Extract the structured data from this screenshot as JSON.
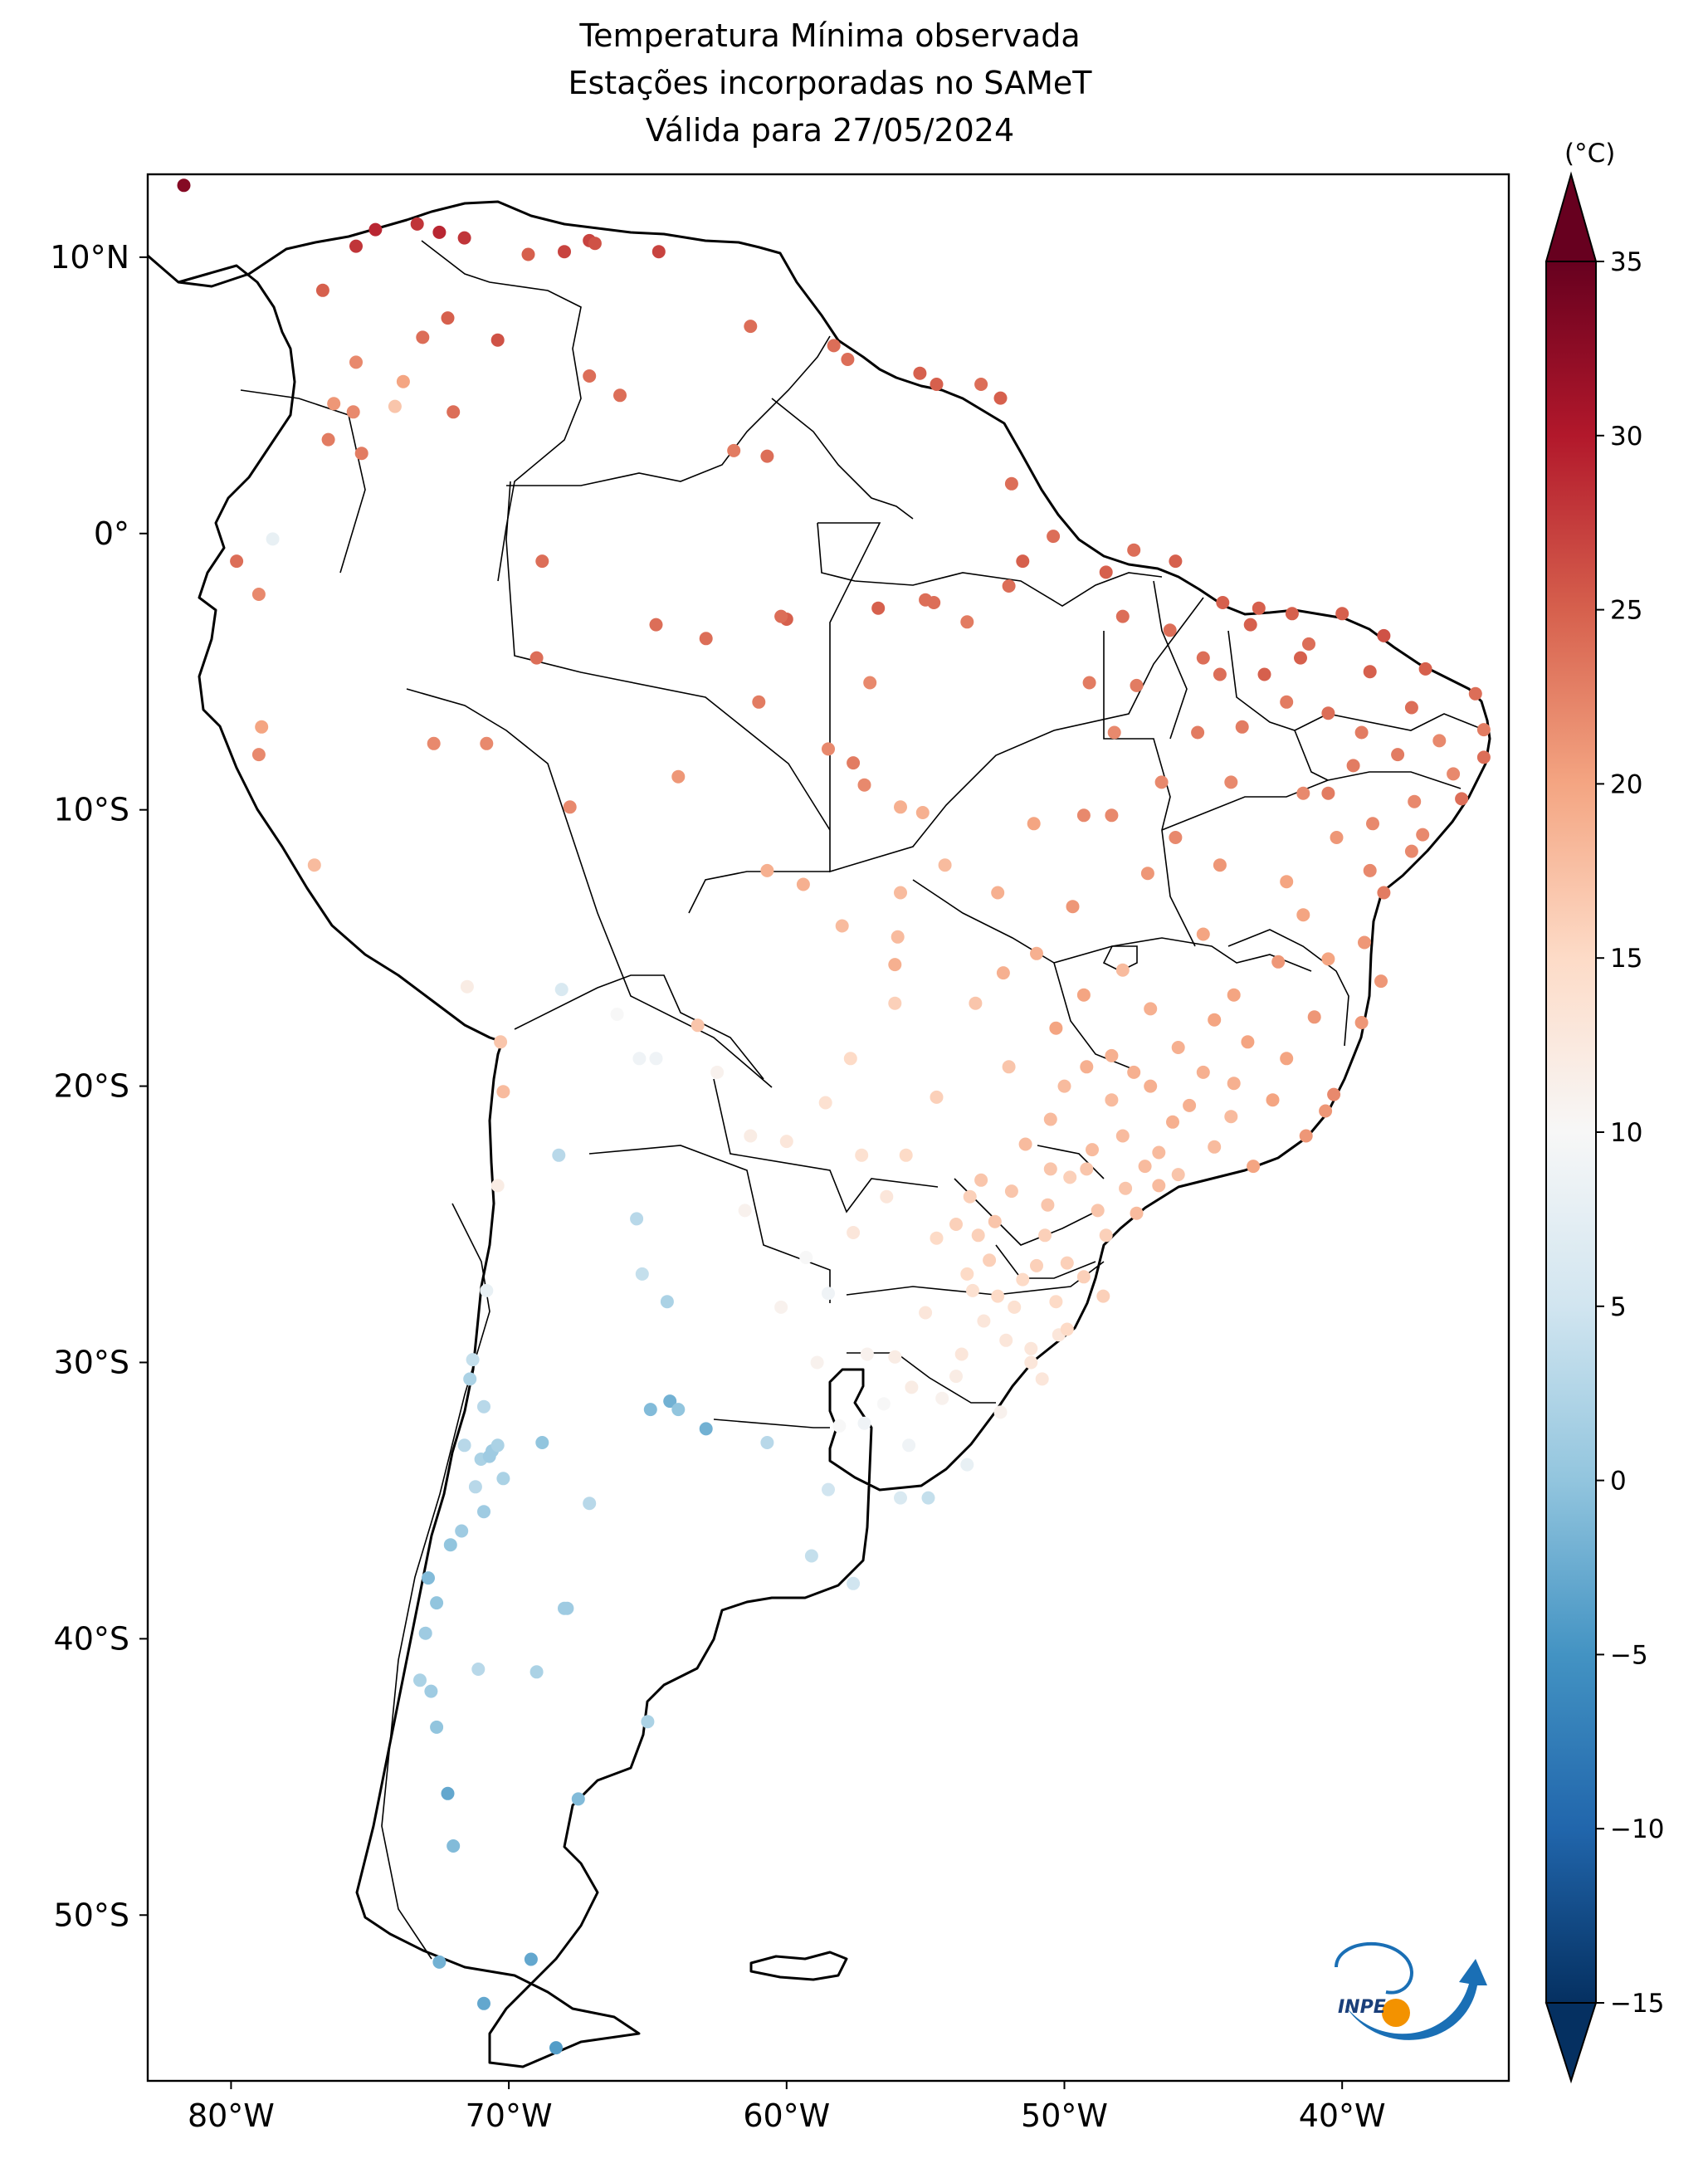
{
  "title": {
    "line1": "Temperatura Mínima observada",
    "line2": "Estações incorporadas no SAMeT",
    "line3": "Válida para 27/05/2024"
  },
  "axes": {
    "lon_range": [
      -83,
      -34
    ],
    "lat_range": [
      -56,
      13
    ],
    "lon_ticks": [
      {
        "value": -80,
        "label": "80°W"
      },
      {
        "value": -70,
        "label": "70°W"
      },
      {
        "value": -60,
        "label": "60°W"
      },
      {
        "value": -50,
        "label": "50°W"
      },
      {
        "value": -40,
        "label": "40°W"
      }
    ],
    "lat_ticks": [
      {
        "value": 10,
        "label": "10°N"
      },
      {
        "value": 0,
        "label": "0°"
      },
      {
        "value": -10,
        "label": "10°S"
      },
      {
        "value": -20,
        "label": "20°S"
      },
      {
        "value": -30,
        "label": "30°S"
      },
      {
        "value": -40,
        "label": "40°S"
      },
      {
        "value": -50,
        "label": "50°S"
      }
    ]
  },
  "colorbar": {
    "unit": "(°C)",
    "colormap": "RdBu_r",
    "range": [
      -15,
      35
    ],
    "ticks": [
      {
        "value": 35,
        "label": "35"
      },
      {
        "value": 30,
        "label": "30"
      },
      {
        "value": 25,
        "label": "25"
      },
      {
        "value": 20,
        "label": "20"
      },
      {
        "value": 15,
        "label": "15"
      },
      {
        "value": 10,
        "label": "10"
      },
      {
        "value": 5,
        "label": "5"
      },
      {
        "value": 0,
        "label": "0"
      },
      {
        "value": -5,
        "label": "−5"
      },
      {
        "value": -10,
        "label": "−10"
      },
      {
        "value": -15,
        "label": "−15"
      }
    ]
  },
  "logo": {
    "text": "INPE",
    "colors": [
      "#1a6fb5",
      "#f39200"
    ]
  },
  "chart_data": {
    "type": "scatter",
    "x_name": "longitude",
    "y_name": "latitude",
    "value_name": "temperatura mínima (°C)",
    "stations": [
      [
        -81.7,
        12.6,
        33
      ],
      [
        -75.5,
        10.4,
        28
      ],
      [
        -74.8,
        11.0,
        29
      ],
      [
        -73.3,
        11.2,
        28
      ],
      [
        -72.5,
        10.9,
        29
      ],
      [
        -67.1,
        10.6,
        27
      ],
      [
        -76.7,
        8.8,
        25
      ],
      [
        -73.1,
        7.1,
        24
      ],
      [
        -72.2,
        7.8,
        25
      ],
      [
        -70.4,
        7.0,
        26
      ],
      [
        -75.5,
        6.2,
        22
      ],
      [
        -76.3,
        4.7,
        21
      ],
      [
        -75.6,
        4.4,
        22
      ],
      [
        -74.1,
        4.6,
        17
      ],
      [
        -76.5,
        3.4,
        23
      ],
      [
        -75.3,
        2.9,
        23
      ],
      [
        -79.8,
        -1.0,
        24
      ],
      [
        -78.5,
        -0.2,
        8
      ],
      [
        -79.0,
        -2.2,
        22
      ],
      [
        -78.9,
        -7.0,
        20
      ],
      [
        -79.0,
        -8.0,
        22
      ],
      [
        -77.0,
        -12.0,
        18
      ],
      [
        -71.5,
        -16.4,
        12
      ],
      [
        -70.3,
        -18.4,
        17
      ],
      [
        -70.2,
        -20.2,
        18
      ],
      [
        -68.1,
        -16.5,
        6
      ],
      [
        -66.1,
        -17.4,
        10
      ],
      [
        -63.2,
        -17.8,
        17
      ],
      [
        -65.3,
        -19.0,
        9
      ],
      [
        -68.2,
        -22.5,
        3
      ],
      [
        -70.4,
        -23.6,
        12
      ],
      [
        -65.4,
        -24.8,
        3
      ],
      [
        -65.2,
        -26.8,
        4
      ],
      [
        -64.3,
        -27.8,
        2
      ],
      [
        -70.8,
        -27.4,
        8
      ],
      [
        -71.3,
        -29.9,
        4
      ],
      [
        -71.4,
        -30.6,
        2
      ],
      [
        -70.9,
        -31.6,
        3
      ],
      [
        -70.6,
        -33.2,
        1
      ],
      [
        -71.0,
        -33.5,
        2
      ],
      [
        -70.7,
        -33.4,
        1
      ],
      [
        -71.6,
        -33.0,
        3
      ],
      [
        -70.4,
        -33.0,
        2
      ],
      [
        -70.2,
        -34.2,
        2
      ],
      [
        -71.2,
        -34.5,
        3
      ],
      [
        -70.9,
        -35.4,
        1
      ],
      [
        -71.7,
        -36.1,
        1
      ],
      [
        -72.1,
        -36.6,
        0
      ],
      [
        -72.9,
        -37.8,
        -1
      ],
      [
        -72.6,
        -38.7,
        0
      ],
      [
        -73.0,
        -39.8,
        1
      ],
      [
        -73.2,
        -41.5,
        2
      ],
      [
        -72.8,
        -41.9,
        1
      ],
      [
        -72.6,
        -43.2,
        0
      ],
      [
        -72.2,
        -45.6,
        -3
      ],
      [
        -72.0,
        -47.5,
        -1
      ],
      [
        -72.5,
        -51.7,
        -2
      ],
      [
        -70.9,
        -53.2,
        -3
      ],
      [
        -68.3,
        -54.8,
        -4
      ],
      [
        -64.2,
        -31.4,
        -2
      ],
      [
        -63.9,
        -31.7,
        0
      ],
      [
        -62.9,
        -32.4,
        -2
      ],
      [
        -68.8,
        -32.9,
        0
      ],
      [
        -60.7,
        -32.9,
        3
      ],
      [
        -58.5,
        -34.6,
        5
      ],
      [
        -59.1,
        -37.0,
        4
      ],
      [
        -57.6,
        -38.0,
        5
      ],
      [
        -68.0,
        -38.9,
        1
      ],
      [
        -67.9,
        -38.9,
        1
      ],
      [
        -71.1,
        -41.1,
        3
      ],
      [
        -69.0,
        -41.2,
        2
      ],
      [
        -65.0,
        -43.0,
        2
      ],
      [
        -67.5,
        -45.8,
        -1
      ],
      [
        -69.2,
        -51.6,
        -3
      ],
      [
        -64.9,
        -31.7,
        -1
      ],
      [
        -67.1,
        -35.1,
        3
      ],
      [
        -60.0,
        -3.1,
        25
      ],
      [
        -60.2,
        -3.0,
        24
      ],
      [
        -56.7,
        -2.7,
        25
      ],
      [
        -55.0,
        -2.4,
        24
      ],
      [
        -54.7,
        -2.5,
        24
      ],
      [
        -52.0,
        -1.9,
        24
      ],
      [
        -48.5,
        -1.4,
        25
      ],
      [
        -47.5,
        -0.6,
        24
      ],
      [
        -46.0,
        -1.0,
        25
      ],
      [
        -44.3,
        -2.5,
        25
      ],
      [
        -43.0,
        -2.7,
        25
      ],
      [
        -41.8,
        -2.9,
        25
      ],
      [
        -40.0,
        -2.9,
        25
      ],
      [
        -38.5,
        -3.7,
        26
      ],
      [
        -37.0,
        -4.9,
        25
      ],
      [
        -35.2,
        -5.8,
        24
      ],
      [
        -34.9,
        -7.1,
        23
      ],
      [
        -34.9,
        -8.1,
        24
      ],
      [
        -35.7,
        -9.6,
        24
      ],
      [
        -37.1,
        -10.9,
        22
      ],
      [
        -38.5,
        -13.0,
        23
      ],
      [
        -39.2,
        -14.8,
        21
      ],
      [
        -39.3,
        -17.7,
        21
      ],
      [
        -40.3,
        -20.3,
        22
      ],
      [
        -43.2,
        -22.9,
        20
      ],
      [
        -46.6,
        -23.6,
        18
      ],
      [
        -48.5,
        -25.4,
        16
      ],
      [
        -48.6,
        -27.6,
        16
      ],
      [
        -51.2,
        -30.0,
        13
      ],
      [
        -52.3,
        -31.8,
        11
      ],
      [
        -53.5,
        -33.7,
        8
      ],
      [
        -55.9,
        -34.9,
        6
      ],
      [
        -54.9,
        -34.9,
        4
      ],
      [
        -60.7,
        -12.2,
        19
      ],
      [
        -63.9,
        -8.8,
        21
      ],
      [
        -67.8,
        -9.9,
        22
      ],
      [
        -70.8,
        -7.6,
        22
      ],
      [
        -72.7,
        -7.6,
        22
      ],
      [
        -62.9,
        -3.8,
        24
      ],
      [
        -64.7,
        -3.3,
        24
      ],
      [
        -68.8,
        -1.0,
        24
      ],
      [
        -69.0,
        -4.5,
        24
      ],
      [
        -61.0,
        -6.1,
        23
      ],
      [
        -58.5,
        -7.8,
        22
      ],
      [
        -57.6,
        -8.3,
        23
      ],
      [
        -55.9,
        -9.9,
        19
      ],
      [
        -55.1,
        -10.1,
        19
      ],
      [
        -57.2,
        -9.1,
        22
      ],
      [
        -54.3,
        -12.0,
        18
      ],
      [
        -56.1,
        -15.6,
        19
      ],
      [
        -55.9,
        -13.0,
        18
      ],
      [
        -58.0,
        -14.2,
        18
      ],
      [
        -52.4,
        -13.0,
        19
      ],
      [
        -51.1,
        -10.5,
        20
      ],
      [
        -49.3,
        -10.2,
        22
      ],
      [
        -48.3,
        -10.2,
        22
      ],
      [
        -48.2,
        -7.2,
        22
      ],
      [
        -47.4,
        -5.5,
        23
      ],
      [
        -49.1,
        -5.4,
        23
      ],
      [
        -44.4,
        -5.1,
        24
      ],
      [
        -42.8,
        -5.1,
        25
      ],
      [
        -42.0,
        -6.1,
        23
      ],
      [
        -39.3,
        -7.2,
        23
      ],
      [
        -41.4,
        -9.4,
        22
      ],
      [
        -40.5,
        -9.4,
        23
      ],
      [
        -44.4,
        -12.0,
        21
      ],
      [
        -45.0,
        -14.5,
        20
      ],
      [
        -43.9,
        -16.7,
        20
      ],
      [
        -46.9,
        -17.2,
        19
      ],
      [
        -49.3,
        -16.7,
        20
      ],
      [
        -47.9,
        -15.8,
        18
      ],
      [
        -52.2,
        -15.9,
        19
      ],
      [
        -48.3,
        -18.9,
        19
      ],
      [
        -45.0,
        -19.5,
        19
      ],
      [
        -43.9,
        -19.9,
        19
      ],
      [
        -42.0,
        -19.0,
        20
      ],
      [
        -41.3,
        -21.8,
        21
      ],
      [
        -47.1,
        -22.9,
        18
      ],
      [
        -49.0,
        -22.3,
        18
      ],
      [
        -51.4,
        -22.1,
        18
      ],
      [
        -53.0,
        -23.4,
        17
      ],
      [
        -54.6,
        -20.4,
        16
      ],
      [
        -55.7,
        -22.5,
        15
      ],
      [
        -57.7,
        -19.0,
        15
      ],
      [
        -56.1,
        -17.0,
        16
      ],
      [
        -50.5,
        -21.2,
        18
      ],
      [
        -52.5,
        -24.9,
        17
      ],
      [
        -53.5,
        -26.8,
        15
      ],
      [
        -51.0,
        -26.5,
        16
      ],
      [
        -50.3,
        -27.8,
        15
      ],
      [
        -49.9,
        -26.4,
        16
      ],
      [
        -53.7,
        -29.7,
        13
      ],
      [
        -56.1,
        -29.8,
        12
      ],
      [
        -54.4,
        -31.3,
        11
      ],
      [
        -52.1,
        -29.2,
        13
      ],
      [
        -50.2,
        -29.0,
        13
      ],
      [
        -55.5,
        -30.9,
        12
      ],
      [
        -57.1,
        -29.7,
        11
      ],
      [
        -58.5,
        -27.5,
        9
      ],
      [
        -59.3,
        -26.2,
        10
      ],
      [
        -57.6,
        -25.3,
        13
      ],
      [
        -56.4,
        -24.0,
        13
      ],
      [
        -57.3,
        -22.5,
        14
      ],
      [
        -60.0,
        -22.0,
        13
      ],
      [
        -61.3,
        -21.8,
        12
      ],
      [
        -62.5,
        -19.5,
        11
      ],
      [
        -58.6,
        -20.6,
        14
      ],
      [
        -64.7,
        -19.0,
        9
      ],
      [
        -59.4,
        -12.7,
        19
      ],
      [
        -56.0,
        -14.6,
        18
      ],
      [
        -53.2,
        -17.0,
        17
      ],
      [
        -52.0,
        -19.3,
        17
      ],
      [
        -47.9,
        -21.8,
        18
      ],
      [
        -46.1,
        -21.3,
        19
      ],
      [
        -44.0,
        -21.1,
        18
      ],
      [
        -45.9,
        -23.2,
        17
      ],
      [
        -47.4,
        -24.6,
        18
      ],
      [
        -48.8,
        -24.5,
        17
      ],
      [
        -49.8,
        -23.3,
        16
      ],
      [
        -50.6,
        -24.3,
        17
      ],
      [
        -52.7,
        -26.3,
        16
      ],
      [
        -53.9,
        -25.0,
        16
      ],
      [
        -54.6,
        -25.5,
        15
      ],
      [
        -51.8,
        -28.0,
        14
      ],
      [
        -52.9,
        -28.5,
        13
      ],
      [
        -53.3,
        -27.4,
        14
      ],
      [
        -51.5,
        -27.0,
        15
      ],
      [
        -49.9,
        -28.8,
        15
      ],
      [
        -44.0,
        -9.0,
        22
      ],
      [
        -46.5,
        -9.0,
        22
      ],
      [
        -43.6,
        -7.0,
        23
      ],
      [
        -41.2,
        -4.0,
        24
      ],
      [
        -39.0,
        -5.0,
        25
      ],
      [
        -37.5,
        -6.3,
        24
      ],
      [
        -36.5,
        -7.5,
        22
      ],
      [
        -36.0,
        -8.7,
        22
      ],
      [
        -37.4,
        -9.7,
        22
      ],
      [
        -38.9,
        -10.5,
        22
      ],
      [
        -40.2,
        -11.0,
        21
      ],
      [
        -42.0,
        -12.6,
        20
      ],
      [
        -41.4,
        -13.8,
        20
      ],
      [
        -40.5,
        -15.4,
        20
      ],
      [
        -42.3,
        -15.5,
        21
      ],
      [
        -41.0,
        -17.5,
        21
      ],
      [
        -44.6,
        -17.6,
        20
      ],
      [
        -43.4,
        -18.4,
        20
      ],
      [
        -45.9,
        -18.6,
        19
      ],
      [
        -47.5,
        -19.5,
        19
      ],
      [
        -49.2,
        -19.3,
        19
      ],
      [
        -50.3,
        -17.9,
        20
      ],
      [
        -51.0,
        -15.2,
        19
      ],
      [
        -49.7,
        -13.5,
        21
      ],
      [
        -47.0,
        -12.3,
        21
      ],
      [
        -46.0,
        -11.0,
        22
      ],
      [
        -45.2,
        -7.2,
        23
      ],
      [
        -47.9,
        -3.0,
        24
      ],
      [
        -46.2,
        -3.5,
        24
      ],
      [
        -45.0,
        -4.5,
        24
      ],
      [
        -43.3,
        -3.3,
        25
      ],
      [
        -41.5,
        -4.5,
        25
      ],
      [
        -40.5,
        -6.5,
        24
      ],
      [
        -39.6,
        -8.4,
        23
      ],
      [
        -38.0,
        -8.0,
        23
      ],
      [
        -37.5,
        -11.5,
        22
      ],
      [
        -39.0,
        -12.2,
        22
      ],
      [
        -38.6,
        -16.2,
        21
      ],
      [
        -40.6,
        -20.9,
        21
      ],
      [
        -42.5,
        -20.5,
        20
      ],
      [
        -44.6,
        -22.2,
        18
      ],
      [
        -45.5,
        -20.7,
        19
      ],
      [
        -46.9,
        -20.0,
        19
      ],
      [
        -48.3,
        -20.5,
        18
      ],
      [
        -50.0,
        -20.0,
        18
      ],
      [
        -49.2,
        -23.0,
        17
      ],
      [
        -47.8,
        -23.7,
        17
      ],
      [
        -46.6,
        -22.4,
        18
      ],
      [
        -50.5,
        -23.0,
        17
      ],
      [
        -51.9,
        -23.8,
        17
      ],
      [
        -53.4,
        -24.0,
        16
      ],
      [
        -53.1,
        -25.4,
        16
      ],
      [
        -50.7,
        -25.4,
        16
      ],
      [
        -49.3,
        -26.9,
        16
      ],
      [
        -52.4,
        -27.6,
        15
      ],
      [
        -55.0,
        -28.2,
        13
      ],
      [
        -51.2,
        -29.5,
        13
      ],
      [
        -53.9,
        -30.5,
        12
      ],
      [
        -50.8,
        -30.6,
        13
      ],
      [
        -55.6,
        -33.0,
        9
      ],
      [
        -57.2,
        -32.2,
        9
      ],
      [
        -58.1,
        -32.3,
        10
      ],
      [
        -56.5,
        -31.5,
        10
      ],
      [
        -58.9,
        -30.0,
        11
      ],
      [
        -60.2,
        -28.0,
        11
      ],
      [
        -61.5,
        -24.5,
        11
      ],
      [
        -57.0,
        -5.4,
        22
      ],
      [
        -53.5,
        -3.2,
        23
      ],
      [
        -51.5,
        -1.0,
        25
      ],
      [
        -50.4,
        -0.1,
        24
      ],
      [
        -51.9,
        1.8,
        24
      ],
      [
        -54.6,
        5.4,
        25
      ],
      [
        -55.2,
        5.8,
        25
      ],
      [
        -53.0,
        5.4,
        24
      ],
      [
        -52.3,
        4.9,
        25
      ],
      [
        -57.8,
        6.3,
        24
      ],
      [
        -58.3,
        6.8,
        24
      ],
      [
        -61.3,
        7.5,
        24
      ],
      [
        -60.7,
        2.8,
        24
      ],
      [
        -61.9,
        3.0,
        23
      ],
      [
        -67.1,
        5.7,
        24
      ],
      [
        -66.0,
        5.0,
        24
      ],
      [
        -64.6,
        10.2,
        27
      ],
      [
        -66.9,
        10.5,
        26
      ],
      [
        -68.0,
        10.2,
        27
      ],
      [
        -69.3,
        10.1,
        25
      ],
      [
        -71.6,
        10.7,
        28
      ],
      [
        -73.8,
        5.5,
        20
      ],
      [
        -72.0,
        4.4,
        24
      ]
    ]
  }
}
